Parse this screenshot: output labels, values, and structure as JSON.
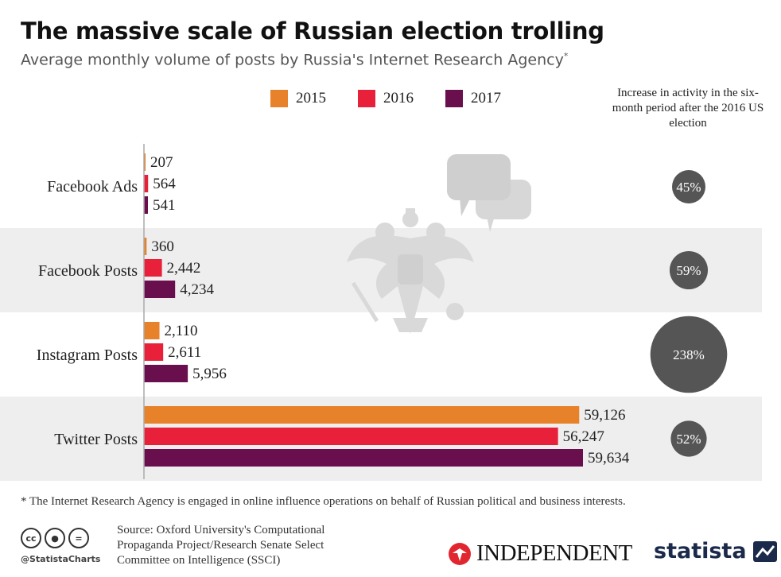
{
  "header": {
    "title": "The massive scale of Russian election trolling",
    "subtitle": "Average monthly volume of posts by Russia's Internet Research Agency",
    "subtitle_mark": "*"
  },
  "legend": [
    {
      "label": "2015",
      "color": "#e8822a"
    },
    {
      "label": "2016",
      "color": "#e8203a"
    },
    {
      "label": "2017",
      "color": "#6a0f4e"
    }
  ],
  "right_header": "Increase in activity in the six-month period after the 2016 US election",
  "chart_data": {
    "type": "bar",
    "orientation": "horizontal",
    "categories": [
      "Facebook Ads",
      "Facebook Posts",
      "Instagram Posts",
      "Twitter Posts"
    ],
    "series": [
      {
        "name": "2015",
        "color": "#e8822a",
        "values": [
          207,
          360,
          2110,
          59126
        ],
        "labels": [
          "207",
          "360",
          "2,110",
          "59,126"
        ]
      },
      {
        "name": "2016",
        "color": "#e8203a",
        "values": [
          564,
          2442,
          2611,
          56247
        ],
        "labels": [
          "564",
          "2,442",
          "2,611",
          "56,247"
        ]
      },
      {
        "name": "2017",
        "color": "#6a0f4e",
        "values": [
          541,
          4234,
          5956,
          59634
        ],
        "labels": [
          "541",
          "4,234",
          "5,956",
          "59,634"
        ]
      }
    ],
    "increase": {
      "values": [
        45,
        59,
        238,
        52
      ],
      "labels": [
        "45%",
        "59%",
        "238%",
        "52%"
      ],
      "color": "#555555"
    },
    "xlim": [
      0,
      59634
    ],
    "row_shading": [
      "#ffffff",
      "#eeeeee",
      "#ffffff",
      "#eeeeee"
    ],
    "grid": false,
    "legend_position": "top"
  },
  "footnote": "* The Internet Research Agency is engaged in online influence operations on behalf of Russian political and business interests.",
  "footer": {
    "cc_icons": [
      "cc-icon",
      "person-icon",
      "equals-icon"
    ],
    "cc_glyphs": [
      "cc",
      "●",
      "="
    ],
    "handle": "@StatistaCharts",
    "source": "Source: Oxford University's Computational Propaganda Project/Research Senate Select Committee on Intelligence (SSCI)",
    "independent": "INDEPENDENT",
    "statista": "statista"
  }
}
